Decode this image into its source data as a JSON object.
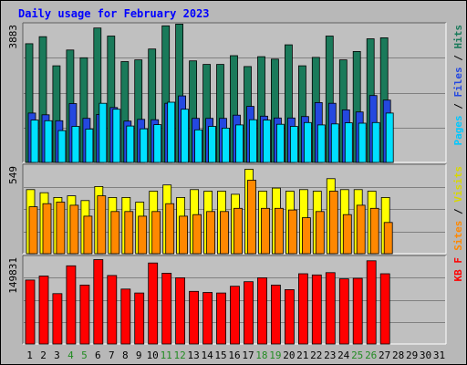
{
  "chart_data": {
    "type": "bar",
    "title": "Daily usage for February 2023",
    "categories": [
      "1",
      "2",
      "3",
      "4",
      "5",
      "6",
      "7",
      "8",
      "9",
      "10",
      "11",
      "12",
      "13",
      "14",
      "15",
      "16",
      "17",
      "18",
      "19",
      "20",
      "21",
      "22",
      "23",
      "24",
      "25",
      "26",
      "27",
      "28",
      "29",
      "30",
      "31"
    ],
    "weekend_days": [
      "4",
      "5",
      "11",
      "12",
      "18",
      "19",
      "25",
      "26"
    ],
    "panels": [
      {
        "name": "hits_files_pages",
        "max_label": "3883",
        "ylim": [
          0,
          3883
        ],
        "legend": [
          "Pages",
          "Files",
          "Hits"
        ],
        "series": [
          {
            "name": "Hits",
            "color": "#1a7a5a",
            "values": [
              3390,
              3590,
              2760,
              3210,
              2990,
              3840,
              3610,
              2880,
              2930,
              3240,
              3900,
              3950,
              2900,
              2800,
              2800,
              3050,
              2740,
              3020,
              2950,
              3360,
              2760,
              3000,
              3610,
              2930,
              3170,
              3530,
              3560,
              0,
              0,
              0,
              0
            ]
          },
          {
            "name": "Files",
            "color": "#2448e0",
            "values": [
              1410,
              1360,
              1190,
              1680,
              1260,
              1370,
              1570,
              1180,
              1230,
              1220,
              1690,
              1900,
              1260,
              1260,
              1260,
              1350,
              1600,
              1320,
              1270,
              1270,
              1310,
              1710,
              1690,
              1500,
              1440,
              1910,
              1780,
              0,
              0,
              0,
              0
            ]
          },
          {
            "name": "Pages",
            "color": "#00e0ff",
            "values": [
              1210,
              1190,
              910,
              1030,
              950,
              1690,
              1520,
              1040,
              960,
              1080,
              1720,
              1520,
              930,
              1030,
              980,
              1070,
              1220,
              1210,
              1090,
              1030,
              1140,
              1070,
              1100,
              1130,
              1120,
              1140,
              1410,
              0,
              0,
              0,
              0
            ]
          }
        ]
      },
      {
        "name": "visits_sites",
        "max_label": "549",
        "ylim": [
          0,
          549
        ],
        "legend": [
          "Sites",
          "Visits"
        ],
        "series": [
          {
            "name": "Visits",
            "color": "#ffff00",
            "values": [
              410,
              390,
              360,
              370,
              340,
              430,
              360,
              360,
              330,
              400,
              440,
              360,
              410,
              400,
              400,
              380,
              540,
              400,
              420,
              400,
              410,
              400,
              480,
              410,
              410,
              400,
              360,
              0,
              0,
              0,
              0
            ]
          },
          {
            "name": "Sites",
            "color": "#ff8800",
            "values": [
              300,
              320,
              330,
              310,
              240,
              370,
              270,
              270,
              240,
              270,
              320,
              240,
              250,
              270,
              270,
              290,
              470,
              290,
              290,
              280,
              230,
              270,
              400,
              250,
              310,
              290,
              200,
              0,
              0,
              0,
              0
            ]
          }
        ]
      },
      {
        "name": "kbytes",
        "max_label": "149831",
        "ylim": [
          0,
          149831
        ],
        "legend": [
          "KB F"
        ],
        "series": [
          {
            "name": "KB F",
            "color": "#ff0000",
            "values": [
              113000,
              120000,
              89000,
              138000,
              104000,
              149000,
              121000,
              97000,
              90000,
              143000,
              125000,
              117000,
              93000,
              91000,
              90000,
              102000,
              110000,
              117000,
              104000,
              96000,
              124000,
              122000,
              126000,
              115000,
              116000,
              147000,
              124000,
              0,
              0,
              0,
              0
            ]
          }
        ]
      }
    ]
  },
  "colors": {
    "background": "#b8b8b8",
    "plot": "#c0c0c0",
    "title": "#0000ff",
    "weekend": "#228b22",
    "label": "#000000",
    "grid": "#808080"
  }
}
